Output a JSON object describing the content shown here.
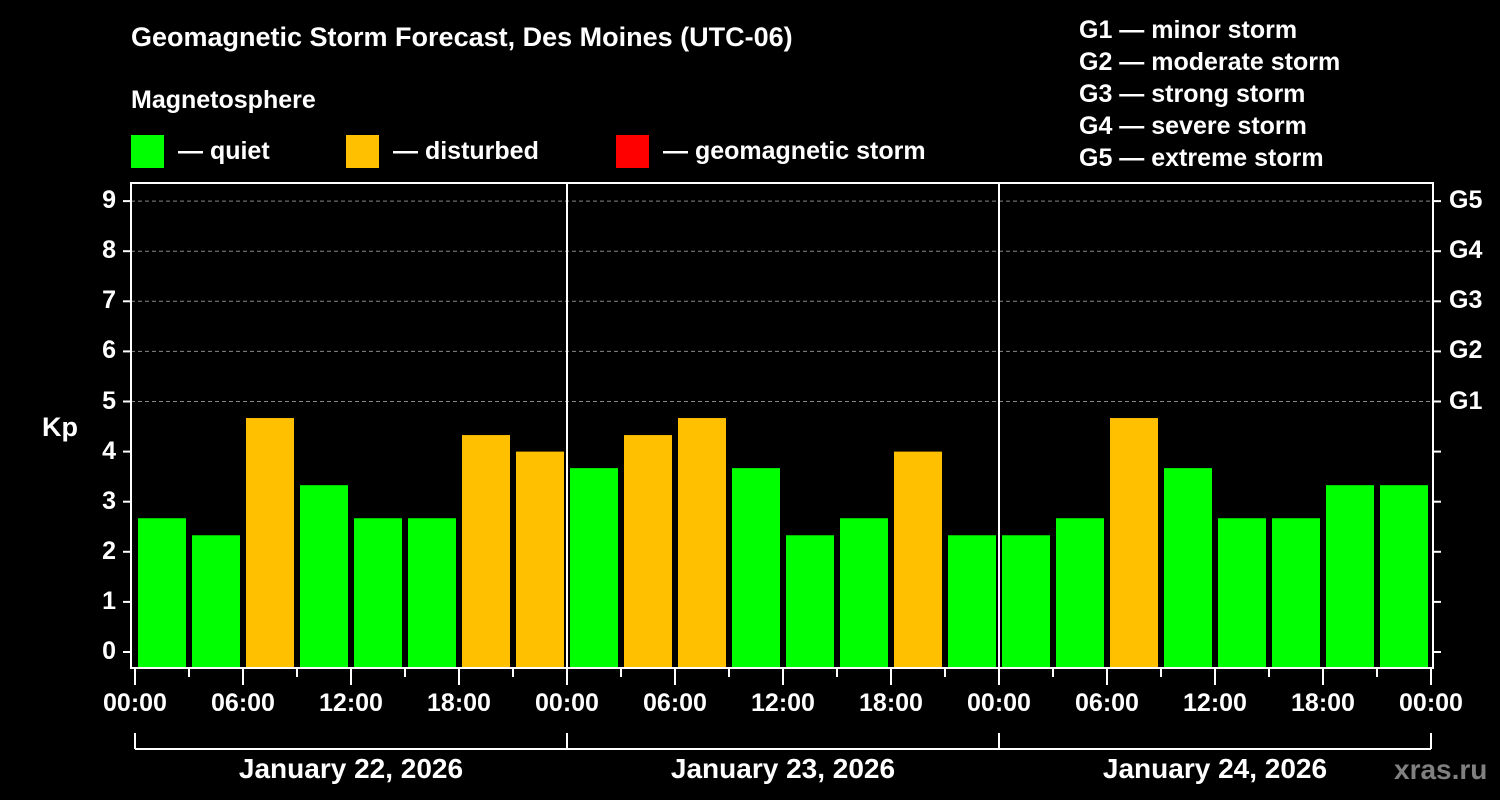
{
  "header": {
    "title": "Geomagnetic Storm Forecast, Des Moines (UTC-06)",
    "subtitle": "Magnetosphere"
  },
  "legend": [
    {
      "label": "— quiet",
      "color": "#00ff00"
    },
    {
      "label": "— disturbed",
      "color": "#ffc000"
    },
    {
      "label": "— geomagnetic storm",
      "color": "#ff0000"
    }
  ],
  "g_scale": [
    "G1 — minor storm",
    "G2 — moderate storm",
    "G3 — strong storm",
    "G4 — severe storm",
    "G5 — extreme storm"
  ],
  "watermark": "xras.ru",
  "chart_data": {
    "type": "bar",
    "title": "Geomagnetic Storm Forecast, Des Moines (UTC-06)",
    "ylabel": "Kp",
    "ylim": [
      -0.3,
      9.4
    ],
    "yticks": [
      0,
      1,
      2,
      3,
      4,
      5,
      6,
      7,
      8,
      9
    ],
    "right_ticks": [
      {
        "kp": 5,
        "label": "G1"
      },
      {
        "kp": 6,
        "label": "G2"
      },
      {
        "kp": 7,
        "label": "G3"
      },
      {
        "kp": 8,
        "label": "G4"
      },
      {
        "kp": 9,
        "label": "G5"
      }
    ],
    "grid": "dashed horizontal at Kp 5-9",
    "xtick_labels": [
      "00:00",
      "06:00",
      "12:00",
      "18:00",
      "00:00",
      "06:00",
      "12:00",
      "18:00",
      "00:00",
      "06:00",
      "12:00",
      "18:00",
      "00:00"
    ],
    "days": [
      "January 22, 2026",
      "January 23, 2026",
      "January 24, 2026"
    ],
    "interval_hours": 3,
    "categories": [
      "Jan 22 00-03",
      "Jan 22 03-06",
      "Jan 22 06-09",
      "Jan 22 09-12",
      "Jan 22 12-15",
      "Jan 22 15-18",
      "Jan 22 18-21",
      "Jan 22 21-24",
      "Jan 23 00-03",
      "Jan 23 03-06",
      "Jan 23 06-09",
      "Jan 23 09-12",
      "Jan 23 12-15",
      "Jan 23 15-18",
      "Jan 23 18-21",
      "Jan 23 21-24",
      "Jan 24 00-03",
      "Jan 24 03-06",
      "Jan 24 06-09",
      "Jan 24 09-12",
      "Jan 24 12-15",
      "Jan 24 15-18",
      "Jan 24 18-21",
      "Jan 24 21-24"
    ],
    "values": [
      2.67,
      2.33,
      4.67,
      3.33,
      2.67,
      2.67,
      4.33,
      4.0,
      3.67,
      4.33,
      4.67,
      3.67,
      2.33,
      2.67,
      4.0,
      2.33,
      2.33,
      2.67,
      4.67,
      3.67,
      2.67,
      2.67,
      3.33,
      3.33
    ],
    "status": [
      "quiet",
      "quiet",
      "disturbed",
      "quiet",
      "quiet",
      "quiet",
      "disturbed",
      "disturbed",
      "quiet",
      "disturbed",
      "disturbed",
      "quiet",
      "quiet",
      "quiet",
      "disturbed",
      "quiet",
      "quiet",
      "quiet",
      "disturbed",
      "quiet",
      "quiet",
      "quiet",
      "quiet",
      "quiet"
    ],
    "colors": {
      "quiet": "#00ff00",
      "disturbed": "#ffc000",
      "storm": "#ff0000"
    }
  }
}
